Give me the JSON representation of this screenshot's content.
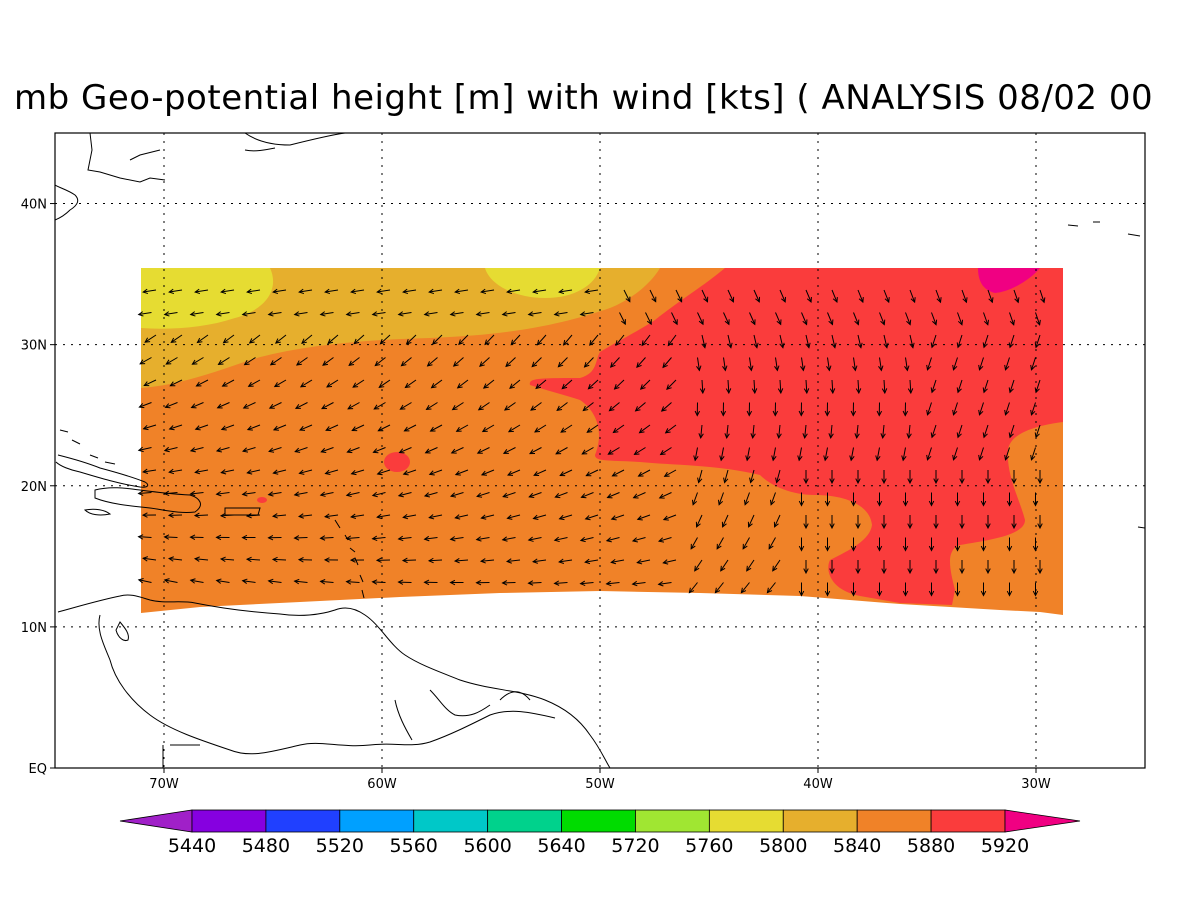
{
  "title": "mb Geo-potential height [m] with wind [kts] ( ANALYSIS 08/02 00",
  "map": {
    "lon_range": [
      -75,
      -25
    ],
    "lat_range": [
      0,
      45
    ],
    "x_ticks": [
      {
        "lon": -70,
        "label": "70W"
      },
      {
        "lon": -60,
        "label": "60W"
      },
      {
        "lon": -50,
        "label": "50W"
      },
      {
        "lon": -40,
        "label": "40W"
      },
      {
        "lon": -30,
        "label": "30W"
      }
    ],
    "y_ticks": [
      {
        "lat": 0,
        "label": "EQ"
      },
      {
        "lat": 10,
        "label": "10N"
      },
      {
        "lat": 20,
        "label": "20N"
      },
      {
        "lat": 30,
        "label": "30N"
      },
      {
        "lat": 40,
        "label": "40N"
      }
    ],
    "gridlines": "dotted"
  },
  "colorbar": {
    "levels": [
      "5440",
      "5480",
      "5520",
      "5560",
      "5600",
      "5640",
      "5720",
      "5760",
      "5800",
      "5840",
      "5880",
      "5920"
    ],
    "colors": [
      "#a020c8",
      "#8600e0",
      "#2040ff",
      "#00a0ff",
      "#00c8c8",
      "#00d28c",
      "#00dc00",
      "#a0e632",
      "#e6dc32",
      "#e6af2d",
      "#f08228",
      "#fa3c3c",
      "#f00082"
    ]
  },
  "fields": {
    "color_5800": "#e6dc32",
    "color_5840": "#e6af2d",
    "color_5880": "#f08228",
    "color_5920": "#fa3c3c",
    "color_5960": "#f00082"
  }
}
